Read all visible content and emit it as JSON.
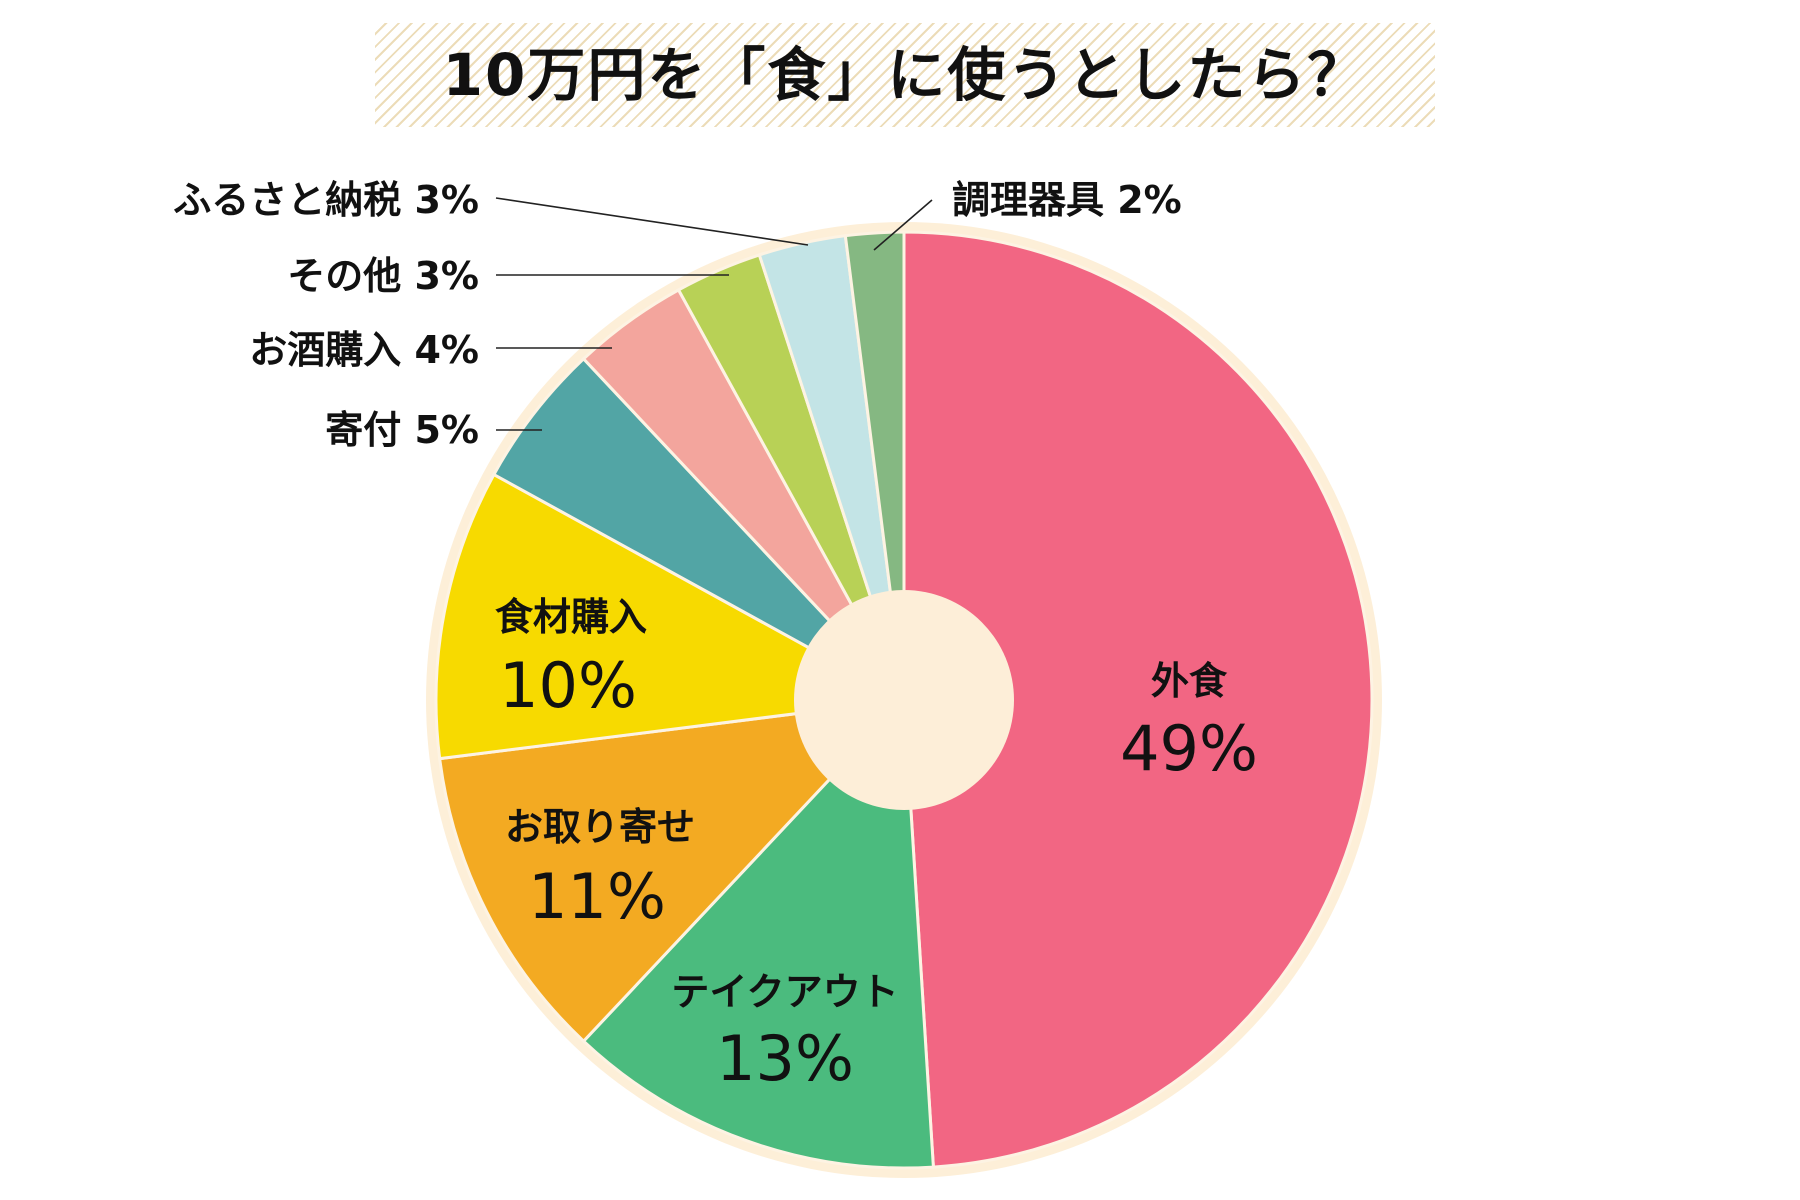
{
  "chart_data": {
    "type": "pie",
    "title": "10万円を「食」に使うとしたら？",
    "donut": true,
    "start": "top, clockwise",
    "slices": [
      {
        "label": "外食",
        "value": 49,
        "pct_text": "49%",
        "color": "#F26683",
        "placement": "inside"
      },
      {
        "label": "テイクアウト",
        "value": 13,
        "pct_text": "13%",
        "color": "#4BBB7E",
        "placement": "inside"
      },
      {
        "label": "お取り寄せ",
        "value": 11,
        "pct_text": "11%",
        "color": "#F3AA22",
        "placement": "inside"
      },
      {
        "label": "食材購入",
        "value": 10,
        "pct_text": "10%",
        "color": "#F7DA00",
        "placement": "inside"
      },
      {
        "label": "寄付",
        "value": 5,
        "pct_text": "5%",
        "color": "#52A5A5",
        "placement": "outside"
      },
      {
        "label": "お酒購入",
        "value": 4,
        "pct_text": "4%",
        "color": "#F3A59D",
        "placement": "outside"
      },
      {
        "label": "その他",
        "value": 3,
        "pct_text": "3%",
        "color": "#B8D156",
        "placement": "outside"
      },
      {
        "label": "ふるさと納税",
        "value": 3,
        "pct_text": "3%",
        "color": "#C3E4E6",
        "placement": "outside"
      },
      {
        "label": "調理器具",
        "value": 2,
        "pct_text": "2%",
        "color": "#85B882",
        "placement": "outside"
      }
    ],
    "ring_color": "#FDEFD8",
    "hole_color": "#FDEED8"
  }
}
